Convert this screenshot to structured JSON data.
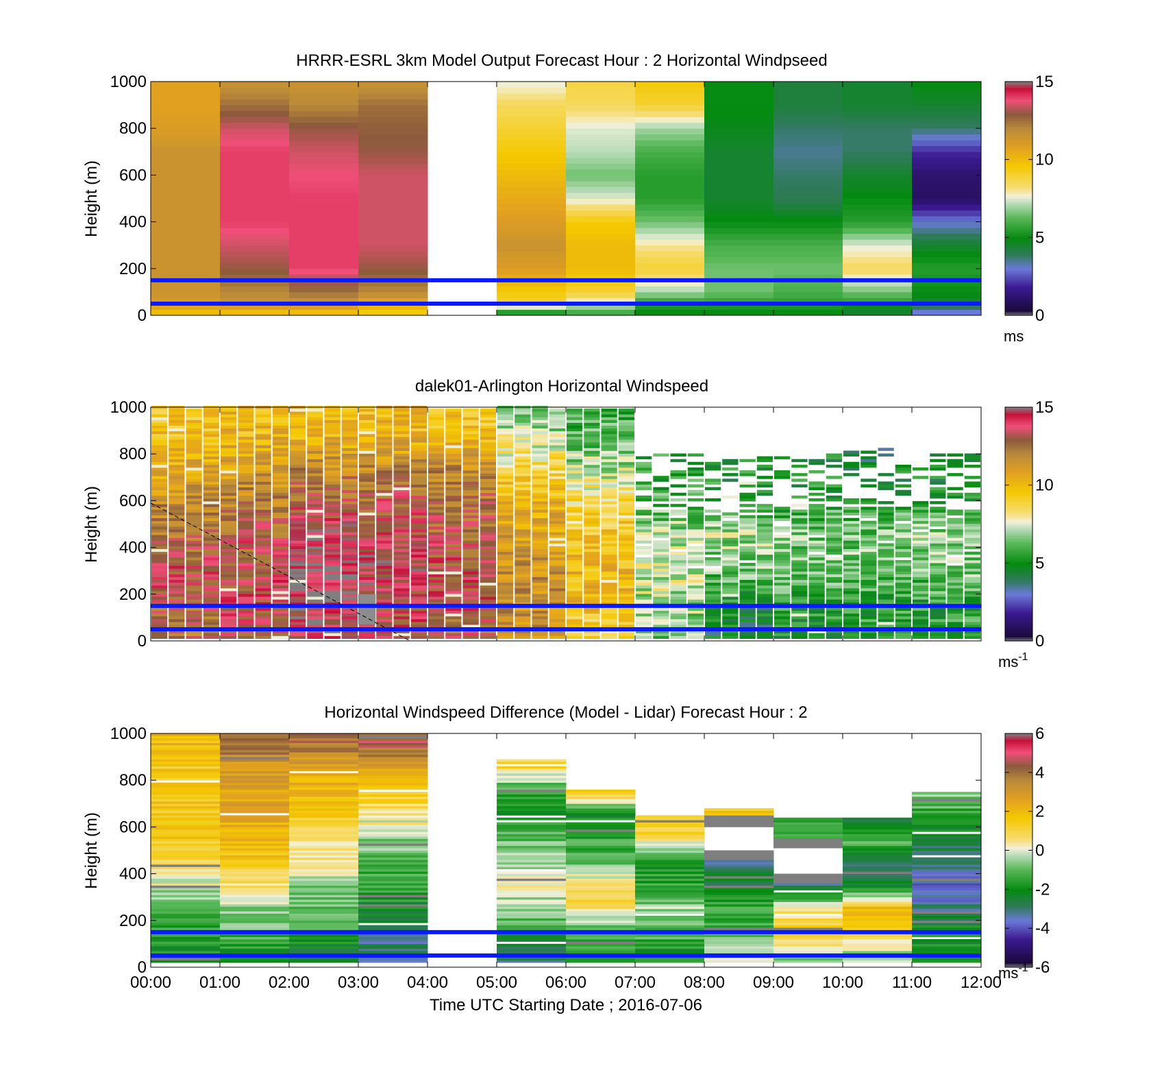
{
  "colors": {
    "reference_line": "#0a1aff",
    "panel_border": "#000000",
    "no_data": "#ffffff",
    "speed_colormap": [
      [
        0.0,
        "#7f7f7f"
      ],
      [
        0.02,
        "#1a0a3a"
      ],
      [
        0.12,
        "#3a1a90"
      ],
      [
        0.2,
        "#6a7ad8"
      ],
      [
        0.26,
        "#2f7a5a"
      ],
      [
        0.33,
        "#048a10"
      ],
      [
        0.42,
        "#5ab85a"
      ],
      [
        0.48,
        "#b9dcb9"
      ],
      [
        0.51,
        "#f2f0d8"
      ],
      [
        0.55,
        "#f6dc70"
      ],
      [
        0.64,
        "#f4c800"
      ],
      [
        0.72,
        "#e2a020"
      ],
      [
        0.8,
        "#b98a3a"
      ],
      [
        0.86,
        "#8c5a3c"
      ],
      [
        0.92,
        "#ef4f78"
      ],
      [
        0.97,
        "#c8103a"
      ],
      [
        1.0,
        "#7f7f7f"
      ]
    ],
    "diff_colormap": [
      [
        0.0,
        "#7f7f7f"
      ],
      [
        0.02,
        "#1a0a3a"
      ],
      [
        0.12,
        "#3a1a90"
      ],
      [
        0.2,
        "#6a7ad8"
      ],
      [
        0.26,
        "#2f7a5a"
      ],
      [
        0.33,
        "#048a10"
      ],
      [
        0.42,
        "#5ab85a"
      ],
      [
        0.48,
        "#b9dcb9"
      ],
      [
        0.51,
        "#f2f0d8"
      ],
      [
        0.55,
        "#f6dc70"
      ],
      [
        0.64,
        "#f4c800"
      ],
      [
        0.72,
        "#e2a020"
      ],
      [
        0.8,
        "#b98a3a"
      ],
      [
        0.86,
        "#8c5a3c"
      ],
      [
        0.92,
        "#ef4f78"
      ],
      [
        0.97,
        "#c8103a"
      ],
      [
        1.0,
        "#7f7f7f"
      ]
    ]
  },
  "shared": {
    "x_ticks": [
      "00:00",
      "01:00",
      "02:00",
      "03:00",
      "04:00",
      "05:00",
      "06:00",
      "07:00",
      "08:00",
      "09:00",
      "10:00",
      "11:00",
      "12:00"
    ],
    "x_label": "Time UTC  Starting Date ; 2016-07-06",
    "y_ticks": [
      "0",
      "200",
      "400",
      "600",
      "800",
      "1000"
    ],
    "y_label": "Height (m)"
  },
  "chart_data": [
    {
      "type": "heatmap",
      "title": "HRRR-ESRL 3km Model Output   Forecast Hour : 2 Horizontal Windpseed",
      "ylabel": "Height (m)",
      "xlim": [
        "00:00",
        "12:00"
      ],
      "ylim": [
        0,
        1000
      ],
      "colorbar": {
        "range": [
          0,
          15
        ],
        "ticks": [
          "0",
          "5",
          "10",
          "15"
        ],
        "unit": "ms",
        "unit_sup": ""
      },
      "reference_lines_m": [
        50,
        150
      ],
      "grid": false,
      "hour_columns": [
        {
          "hour": "00:00",
          "heights_m": [
            20,
            50,
            100,
            200,
            300,
            400,
            500,
            600,
            700,
            800,
            900,
            1000
          ],
          "speed_ms": [
            10,
            11,
            11.5,
            11.5,
            11.5,
            11.5,
            11.5,
            11.5,
            11.5,
            11,
            10.8,
            10.8
          ]
        },
        {
          "hour": "01:00",
          "heights_m": [
            20,
            50,
            100,
            200,
            300,
            400,
            500,
            600,
            700,
            800,
            900,
            1000
          ],
          "speed_ms": [
            10,
            11.5,
            12,
            13,
            13.5,
            14,
            14,
            14,
            14,
            13.5,
            12.5,
            11.5
          ]
        },
        {
          "hour": "02:00",
          "heights_m": [
            20,
            50,
            100,
            200,
            300,
            400,
            500,
            600,
            700,
            800,
            900,
            1000
          ],
          "speed_ms": [
            10,
            11.5,
            12.5,
            14,
            14,
            14,
            14,
            13.8,
            13.5,
            13,
            12,
            11.5
          ]
        },
        {
          "hour": "03:00",
          "heights_m": [
            20,
            50,
            100,
            200,
            300,
            400,
            500,
            600,
            700,
            800,
            900,
            1000
          ],
          "speed_ms": [
            9.5,
            10.5,
            12,
            13,
            13.5,
            13.5,
            13.5,
            13.5,
            13,
            12.8,
            12.5,
            11.5
          ]
        },
        {
          "hour": "04:00",
          "heights_m": [],
          "speed_ms": []
        },
        {
          "hour": "05:00",
          "heights_m": [
            20,
            50,
            100,
            200,
            300,
            400,
            500,
            600,
            700,
            800,
            900,
            1000
          ],
          "speed_ms": [
            5.5,
            9,
            9.5,
            11,
            11.5,
            11,
            10.5,
            10,
            9.5,
            9,
            8.5,
            7.5
          ]
        },
        {
          "hour": "06:00",
          "heights_m": [
            20,
            50,
            100,
            200,
            300,
            400,
            500,
            600,
            700,
            800,
            900,
            1000
          ],
          "speed_ms": [
            6,
            7.5,
            9,
            10,
            10,
            9.5,
            7.5,
            6.5,
            7.2,
            7.5,
            8.5,
            8.8
          ]
        },
        {
          "hour": "07:00",
          "heights_m": [
            20,
            50,
            100,
            200,
            300,
            400,
            500,
            600,
            700,
            800,
            900,
            1000
          ],
          "speed_ms": [
            5,
            5.5,
            7,
            9,
            8,
            6.5,
            5.5,
            5.5,
            6,
            7,
            9,
            9.5
          ]
        },
        {
          "hour": "08:00",
          "heights_m": [
            20,
            50,
            100,
            200,
            300,
            400,
            500,
            600,
            700,
            800,
            900,
            1000
          ],
          "speed_ms": [
            5,
            5.5,
            6.5,
            6.5,
            6,
            5,
            4.5,
            4.5,
            4.5,
            4.8,
            5,
            5
          ]
        },
        {
          "hour": "09:00",
          "heights_m": [
            20,
            50,
            100,
            200,
            300,
            400,
            500,
            600,
            700,
            800,
            900,
            1000
          ],
          "speed_ms": [
            5,
            5.5,
            6,
            6.5,
            6,
            5,
            4,
            3.8,
            3.5,
            3.8,
            4.3,
            4.3
          ]
        },
        {
          "hour": "10:00",
          "heights_m": [
            20,
            50,
            100,
            200,
            300,
            400,
            500,
            600,
            700,
            800,
            900,
            1000
          ],
          "speed_ms": [
            4.5,
            5.5,
            6.5,
            8.5,
            7.5,
            5.5,
            5,
            4.5,
            3.8,
            3.8,
            4.5,
            4.5
          ]
        },
        {
          "hour": "11:00",
          "heights_m": [
            20,
            50,
            100,
            200,
            300,
            400,
            500,
            600,
            700,
            800,
            900,
            1000
          ],
          "speed_ms": [
            3,
            4.5,
            5,
            5.5,
            4.5,
            3,
            1,
            1.2,
            2,
            3.8,
            4.5,
            5
          ]
        }
      ]
    },
    {
      "type": "heatmap",
      "title": "dalek01-Arlington  Horizontal Windspeed",
      "ylabel": "Height (m)",
      "xlim": [
        "00:00",
        "12:00"
      ],
      "ylim": [
        0,
        1000
      ],
      "colorbar": {
        "range": [
          0,
          15
        ],
        "ticks": [
          "0",
          "5",
          "10",
          "15"
        ],
        "unit": "ms",
        "unit_sup": "-1"
      },
      "reference_lines_m": [
        50,
        150
      ],
      "grid": false,
      "profiles_per_hour": 4,
      "hourly_mean_profiles": [
        {
          "hour": "00:00",
          "heights_m": [
            50,
            150,
            300,
            450,
            600,
            750,
            900
          ],
          "speed_ms": [
            12.5,
            13,
            13.5,
            12.5,
            11.5,
            10.5,
            9.5
          ],
          "top_m": 1000
        },
        {
          "hour": "01:00",
          "heights_m": [
            50,
            150,
            300,
            450,
            600,
            750,
            900
          ],
          "speed_ms": [
            13,
            13.5,
            13.5,
            13,
            12,
            11,
            10
          ],
          "top_m": 1000
        },
        {
          "hour": "02:00",
          "heights_m": [
            50,
            150,
            300,
            450,
            600,
            750,
            900
          ],
          "speed_ms": [
            14,
            14,
            14.5,
            14,
            13,
            11.5,
            10
          ],
          "top_m": 1000
        },
        {
          "hour": "03:00",
          "heights_m": [
            50,
            150,
            300,
            450,
            600,
            750,
            900
          ],
          "speed_ms": [
            13.5,
            13.5,
            14,
            13.5,
            13,
            11.5,
            10
          ],
          "top_m": 1000
        },
        {
          "hour": "04:00",
          "heights_m": [
            50,
            150,
            300,
            450,
            600,
            750,
            900
          ],
          "speed_ms": [
            13,
            13.5,
            13.5,
            13,
            12.5,
            11.5,
            9.5
          ],
          "top_m": 990
        },
        {
          "hour": "05:00",
          "heights_m": [
            50,
            150,
            300,
            450,
            600,
            750,
            900
          ],
          "speed_ms": [
            11.5,
            11.5,
            11.5,
            11,
            10,
            8.5,
            7
          ],
          "top_m": 1000
        },
        {
          "hour": "06:00",
          "heights_m": [
            50,
            150,
            300,
            450,
            600,
            750,
            900
          ],
          "speed_ms": [
            9,
            10,
            10,
            9.5,
            8.5,
            7,
            6
          ],
          "top_m": 990
        },
        {
          "hour": "07:00",
          "heights_m": [
            50,
            150,
            300,
            450,
            600,
            750,
            900
          ],
          "speed_ms": [
            6.5,
            7,
            7.5,
            7,
            6,
            5.5,
            5
          ],
          "top_m": 800
        },
        {
          "hour": "08:00",
          "heights_m": [
            50,
            150,
            300,
            450,
            600,
            750,
            900
          ],
          "speed_ms": [
            4.5,
            5,
            6.5,
            7,
            5.5,
            5,
            5
          ],
          "top_m": 780
        },
        {
          "hour": "09:00",
          "heights_m": [
            50,
            150,
            300,
            450,
            600,
            750,
            900
          ],
          "speed_ms": [
            5,
            5.5,
            6.5,
            6.5,
            5.5,
            5,
            4.5
          ],
          "top_m": 800
        },
        {
          "hour": "10:00",
          "heights_m": [
            50,
            150,
            300,
            450,
            600,
            750,
            900
          ],
          "speed_ms": [
            5.5,
            5.5,
            6.5,
            6.5,
            5.5,
            4.5,
            4.5
          ],
          "top_m": 820
        },
        {
          "hour": "11:00",
          "heights_m": [
            50,
            150,
            300,
            450,
            600,
            750,
            900
          ],
          "speed_ms": [
            5.5,
            5.5,
            6.5,
            7,
            5.5,
            4.5,
            4.5
          ],
          "top_m": 800
        }
      ],
      "gray_block": {
        "x_start": "03:00",
        "x_end": "03:15",
        "bottom_m": 70,
        "top_m": 200
      },
      "dashed_line": {
        "start": [
          "00:00",
          590
        ],
        "end": [
          "03:45",
          0
        ]
      }
    },
    {
      "type": "heatmap",
      "title": "Horizontal Windspeed Difference (Model - Lidar) Forecast Hour : 2",
      "ylabel": "Height (m)",
      "xlabel": "Time UTC  Starting Date ; 2016-07-06",
      "xlim": [
        "00:00",
        "12:00"
      ],
      "ylim": [
        0,
        1000
      ],
      "colorbar": {
        "range": [
          -6,
          6
        ],
        "ticks": [
          "-6",
          "-4",
          "-2",
          "0",
          "2",
          "4",
          "6"
        ],
        "unit": "ms",
        "unit_sup": "-1"
      },
      "reference_lines_m": [
        50,
        150
      ],
      "grid": false,
      "hour_columns": [
        {
          "hour": "00:00",
          "top_m": 1000,
          "heights_m": [
            50,
            150,
            250,
            350,
            450,
            550,
            650,
            750,
            850,
            950
          ],
          "diff_ms": [
            -2,
            -1.5,
            -1,
            0,
            1,
            1.5,
            1.5,
            1.5,
            1.5,
            2
          ]
        },
        {
          "hour": "01:00",
          "top_m": 1000,
          "heights_m": [
            50,
            150,
            250,
            350,
            450,
            550,
            650,
            750,
            850,
            950
          ],
          "diff_ms": [
            -2,
            -1,
            -0.5,
            0.5,
            1.5,
            2,
            2.5,
            2.5,
            3,
            4
          ]
        },
        {
          "hour": "02:00",
          "top_m": 1000,
          "heights_m": [
            50,
            150,
            250,
            350,
            450,
            550,
            650,
            750,
            850,
            950
          ],
          "diff_ms": [
            -2.5,
            -1.5,
            -1,
            -0.5,
            0.5,
            0.8,
            1.5,
            2,
            2.5,
            4
          ]
        },
        {
          "hour": "03:00",
          "top_m": 1000,
          "heights_m": [
            50,
            150,
            250,
            350,
            450,
            550,
            650,
            750,
            850,
            950
          ],
          "diff_ms": [
            -3,
            -3,
            -2,
            -1.5,
            -1,
            -0.5,
            0.5,
            1.5,
            2.5,
            4.5
          ]
        },
        {
          "hour": "04:00",
          "top_m": 0,
          "heights_m": [],
          "diff_ms": []
        },
        {
          "hour": "05:00",
          "top_m": 890,
          "heights_m": [
            50,
            150,
            250,
            350,
            450,
            550,
            650,
            750,
            850
          ],
          "diff_ms": [
            -3,
            -1.5,
            -0.5,
            0,
            -0.5,
            -1,
            -2,
            -1.5,
            1
          ]
        },
        {
          "hour": "06:00",
          "top_m": 760,
          "heights_m": [
            50,
            150,
            250,
            350,
            450,
            550,
            650,
            750
          ],
          "diff_ms": [
            -1.5,
            -1.5,
            1,
            0.5,
            -1,
            -1.5,
            -2,
            2
          ]
        },
        {
          "hour": "07:00",
          "top_m": 650,
          "heights_m": [
            50,
            150,
            250,
            350,
            450,
            550,
            650
          ],
          "diff_ms": [
            -2,
            -1,
            -0.5,
            -1.5,
            -2,
            1,
            1.5
          ]
        },
        {
          "hour": "08:00",
          "top_m": 680,
          "heights_m": [
            50,
            150,
            250,
            350,
            450,
            550,
            650
          ],
          "diff_ms": [
            -0.5,
            -1,
            -1.5,
            -2.5,
            -3,
            -99,
            1.5
          ]
        },
        {
          "hour": "09:00",
          "top_m": 640,
          "heights_m": [
            50,
            150,
            250,
            350,
            450,
            550,
            650
          ],
          "diff_ms": [
            -0.5,
            1.5,
            0.3,
            -3,
            -99,
            -1.5,
            -1
          ]
        },
        {
          "hour": "10:00",
          "top_m": 640,
          "heights_m": [
            50,
            150,
            250,
            350,
            450,
            550,
            650
          ],
          "diff_ms": [
            -0.5,
            1.5,
            2,
            -2.5,
            -2.5,
            -1,
            -3
          ]
        },
        {
          "hour": "11:00",
          "top_m": 750,
          "heights_m": [
            50,
            150,
            250,
            350,
            450,
            550,
            650,
            750
          ],
          "diff_ms": [
            -2,
            -2,
            -3,
            -4,
            -3,
            -2.5,
            -1.5,
            -0.5
          ]
        }
      ]
    }
  ]
}
